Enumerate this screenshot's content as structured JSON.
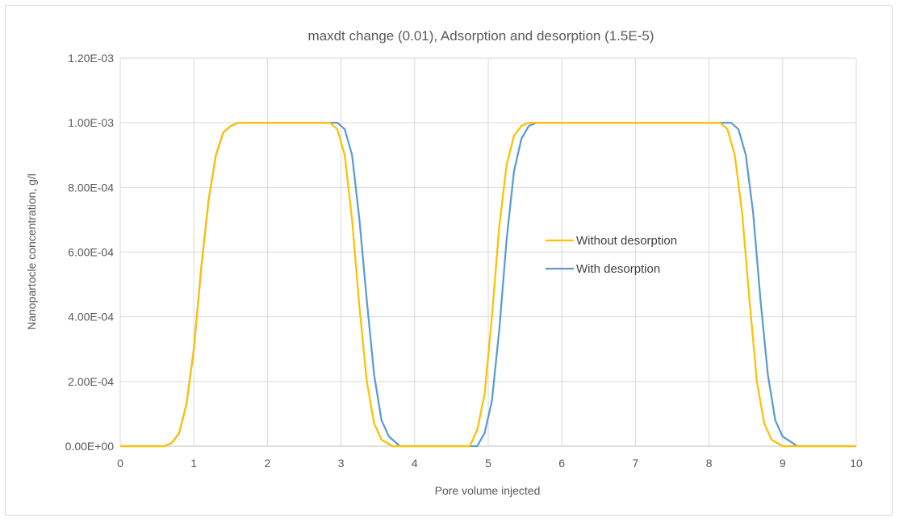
{
  "chart_data": {
    "type": "line",
    "title": "maxdt change (0.01), Adsorption and desorption (1.5E-5)",
    "xlabel": "Pore volume injected",
    "ylabel": "Nanopartocle concentration, g/l",
    "xlim": [
      0,
      10
    ],
    "ylim": [
      0,
      0.0012
    ],
    "x_ticks": [
      "0",
      "1",
      "2",
      "3",
      "4",
      "5",
      "6",
      "7",
      "8",
      "9",
      "10"
    ],
    "y_ticks": [
      "0.00E+00",
      "2.00E-04",
      "4.00E-04",
      "6.00E-04",
      "8.00E-04",
      "1.00E-03",
      "1.20E-03"
    ],
    "grid": true,
    "legend_position": "center-right",
    "series": [
      {
        "name": "Without desorption",
        "color": "#FFC000",
        "points": [
          [
            0,
            0
          ],
          [
            0.6,
            0
          ],
          [
            0.7,
            1e-05
          ],
          [
            0.8,
            4e-05
          ],
          [
            0.9,
            0.00013
          ],
          [
            1.0,
            0.0003
          ],
          [
            1.1,
            0.00055
          ],
          [
            1.2,
            0.00076
          ],
          [
            1.3,
            0.0009
          ],
          [
            1.4,
            0.00097
          ],
          [
            1.5,
            0.00099
          ],
          [
            1.6,
            0.001
          ],
          [
            2.85,
            0.001
          ],
          [
            2.95,
            0.00098
          ],
          [
            3.05,
            0.0009
          ],
          [
            3.15,
            0.0007
          ],
          [
            3.25,
            0.00043
          ],
          [
            3.35,
            0.0002
          ],
          [
            3.45,
            7e-05
          ],
          [
            3.55,
            2e-05
          ],
          [
            3.7,
            0
          ],
          [
            4.75,
            0
          ],
          [
            4.85,
            5e-05
          ],
          [
            4.95,
            0.00016
          ],
          [
            5.05,
            0.0004
          ],
          [
            5.15,
            0.00068
          ],
          [
            5.25,
            0.00087
          ],
          [
            5.35,
            0.00096
          ],
          [
            5.45,
            0.00099
          ],
          [
            5.55,
            0.001
          ],
          [
            8.15,
            0.001
          ],
          [
            8.25,
            0.00098
          ],
          [
            8.35,
            0.0009
          ],
          [
            8.45,
            0.00072
          ],
          [
            8.55,
            0.00045
          ],
          [
            8.65,
            0.0002
          ],
          [
            8.75,
            7e-05
          ],
          [
            8.85,
            2e-05
          ],
          [
            9.0,
            0
          ],
          [
            10,
            0
          ]
        ]
      },
      {
        "name": "With desorption",
        "color": "#5B9BD5",
        "points": [
          [
            0,
            0
          ],
          [
            0.6,
            0
          ],
          [
            0.7,
            1e-05
          ],
          [
            0.8,
            4e-05
          ],
          [
            0.9,
            0.00013
          ],
          [
            1.0,
            0.0003
          ],
          [
            1.1,
            0.00055
          ],
          [
            1.2,
            0.00076
          ],
          [
            1.3,
            0.0009
          ],
          [
            1.4,
            0.00097
          ],
          [
            1.5,
            0.00099
          ],
          [
            1.6,
            0.001
          ],
          [
            2.95,
            0.001
          ],
          [
            3.05,
            0.00098
          ],
          [
            3.15,
            0.0009
          ],
          [
            3.25,
            0.0007
          ],
          [
            3.35,
            0.00045
          ],
          [
            3.45,
            0.00022
          ],
          [
            3.55,
            8e-05
          ],
          [
            3.65,
            3e-05
          ],
          [
            3.8,
            0
          ],
          [
            4.85,
            0
          ],
          [
            4.95,
            4e-05
          ],
          [
            5.05,
            0.00014
          ],
          [
            5.15,
            0.00036
          ],
          [
            5.25,
            0.00064
          ],
          [
            5.35,
            0.00085
          ],
          [
            5.45,
            0.00095
          ],
          [
            5.55,
            0.00099
          ],
          [
            5.65,
            0.001
          ],
          [
            8.3,
            0.001
          ],
          [
            8.4,
            0.00098
          ],
          [
            8.5,
            0.0009
          ],
          [
            8.6,
            0.00072
          ],
          [
            8.7,
            0.00045
          ],
          [
            8.8,
            0.00022
          ],
          [
            8.9,
            8e-05
          ],
          [
            9.0,
            3e-05
          ],
          [
            9.2,
            0
          ],
          [
            10,
            0
          ]
        ]
      }
    ]
  }
}
